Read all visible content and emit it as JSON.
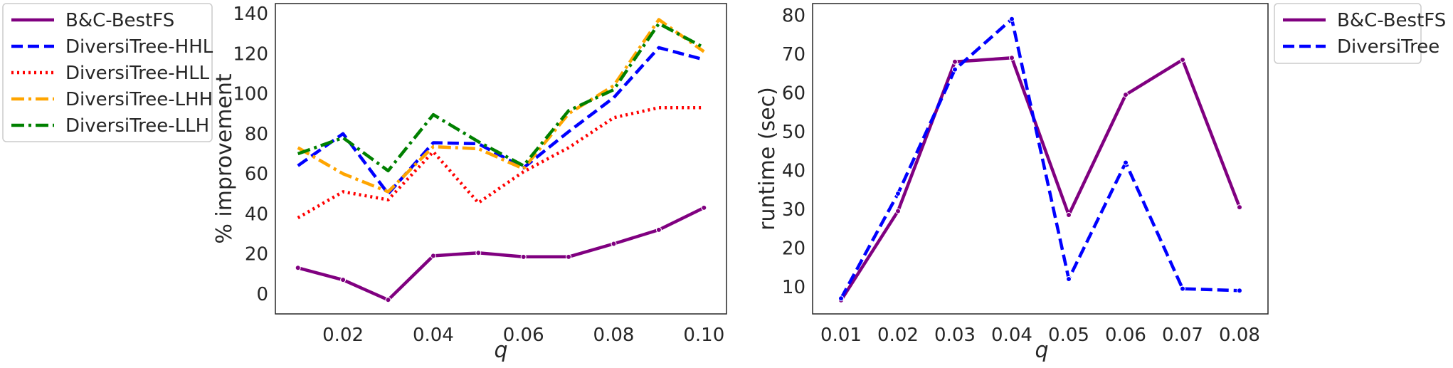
{
  "chart_data": [
    {
      "type": "line",
      "xlabel": "q",
      "ylabel": "% improvement",
      "xlim": [
        0.005,
        0.105
      ],
      "ylim": [
        -10,
        145
      ],
      "x_ticks": [
        0.02,
        0.04,
        0.06,
        0.08,
        0.1
      ],
      "x_tick_labels": [
        "0.02",
        "0.04",
        "0.06",
        "0.08",
        "0.10"
      ],
      "y_ticks": [
        0,
        20,
        40,
        60,
        80,
        100,
        120,
        140
      ],
      "y_tick_labels": [
        "0",
        "20",
        "40",
        "60",
        "80",
        "100",
        "120",
        "140"
      ],
      "grid": false,
      "legend_position": "outside-left",
      "x": [
        0.01,
        0.02,
        0.03,
        0.04,
        0.05,
        0.06,
        0.07,
        0.08,
        0.09,
        0.1
      ],
      "series": [
        {
          "name": "B&C-BestFS",
          "color": "#800080",
          "dash": "solid",
          "markers": true,
          "values": [
            13,
            7,
            -3,
            19,
            20.5,
            18.5,
            18.5,
            25,
            32,
            43
          ]
        },
        {
          "name": "DiversiTree-HHL",
          "color": "#0000ff",
          "dash": "dashed",
          "markers": false,
          "values": [
            64,
            80,
            50,
            75.5,
            75,
            63,
            81,
            98,
            123,
            117
          ]
        },
        {
          "name": "DiversiTree-HLL",
          "color": "#ff0000",
          "dash": "dotted",
          "markers": false,
          "values": [
            38,
            51,
            47,
            71,
            45.5,
            61,
            73,
            88,
            93,
            93
          ]
        },
        {
          "name": "DiversiTree-LHH",
          "color": "#ffa500",
          "dash": "dashdot",
          "markers": false,
          "values": [
            73,
            60,
            51,
            73.5,
            72.5,
            62.5,
            90,
            104,
            137,
            121
          ]
        },
        {
          "name": "DiversiTree-LLH",
          "color": "#008000",
          "dash": "dashdot",
          "markers": false,
          "values": [
            70,
            78,
            61.5,
            89.5,
            76,
            64,
            91.5,
            102,
            135,
            123
          ]
        }
      ]
    },
    {
      "type": "line",
      "xlabel": "q",
      "ylabel": "runtime (sec)",
      "xlim": [
        0.005,
        0.085
      ],
      "ylim": [
        3,
        83
      ],
      "x_ticks": [
        0.01,
        0.02,
        0.03,
        0.04,
        0.05,
        0.06,
        0.07,
        0.08
      ],
      "x_tick_labels": [
        "0.01",
        "0.02",
        "0.03",
        "0.04",
        "0.05",
        "0.06",
        "0.07",
        "0.08"
      ],
      "y_ticks": [
        10,
        20,
        30,
        40,
        50,
        60,
        70,
        80
      ],
      "y_tick_labels": [
        "10",
        "20",
        "30",
        "40",
        "50",
        "60",
        "70",
        "80"
      ],
      "grid": false,
      "legend_position": "outside-right",
      "x": [
        0.01,
        0.02,
        0.03,
        0.04,
        0.05,
        0.06,
        0.07,
        0.08
      ],
      "series": [
        {
          "name": "B&C-BestFS",
          "color": "#800080",
          "dash": "solid",
          "markers": true,
          "values": [
            6.5,
            29.5,
            68,
            69,
            28.5,
            59.5,
            68.5,
            30.5
          ]
        },
        {
          "name": "DiversiTree",
          "color": "#0000ff",
          "dash": "dashed",
          "markers": true,
          "values": [
            7,
            34,
            66,
            79,
            12,
            42,
            9.5,
            9
          ]
        }
      ]
    }
  ]
}
